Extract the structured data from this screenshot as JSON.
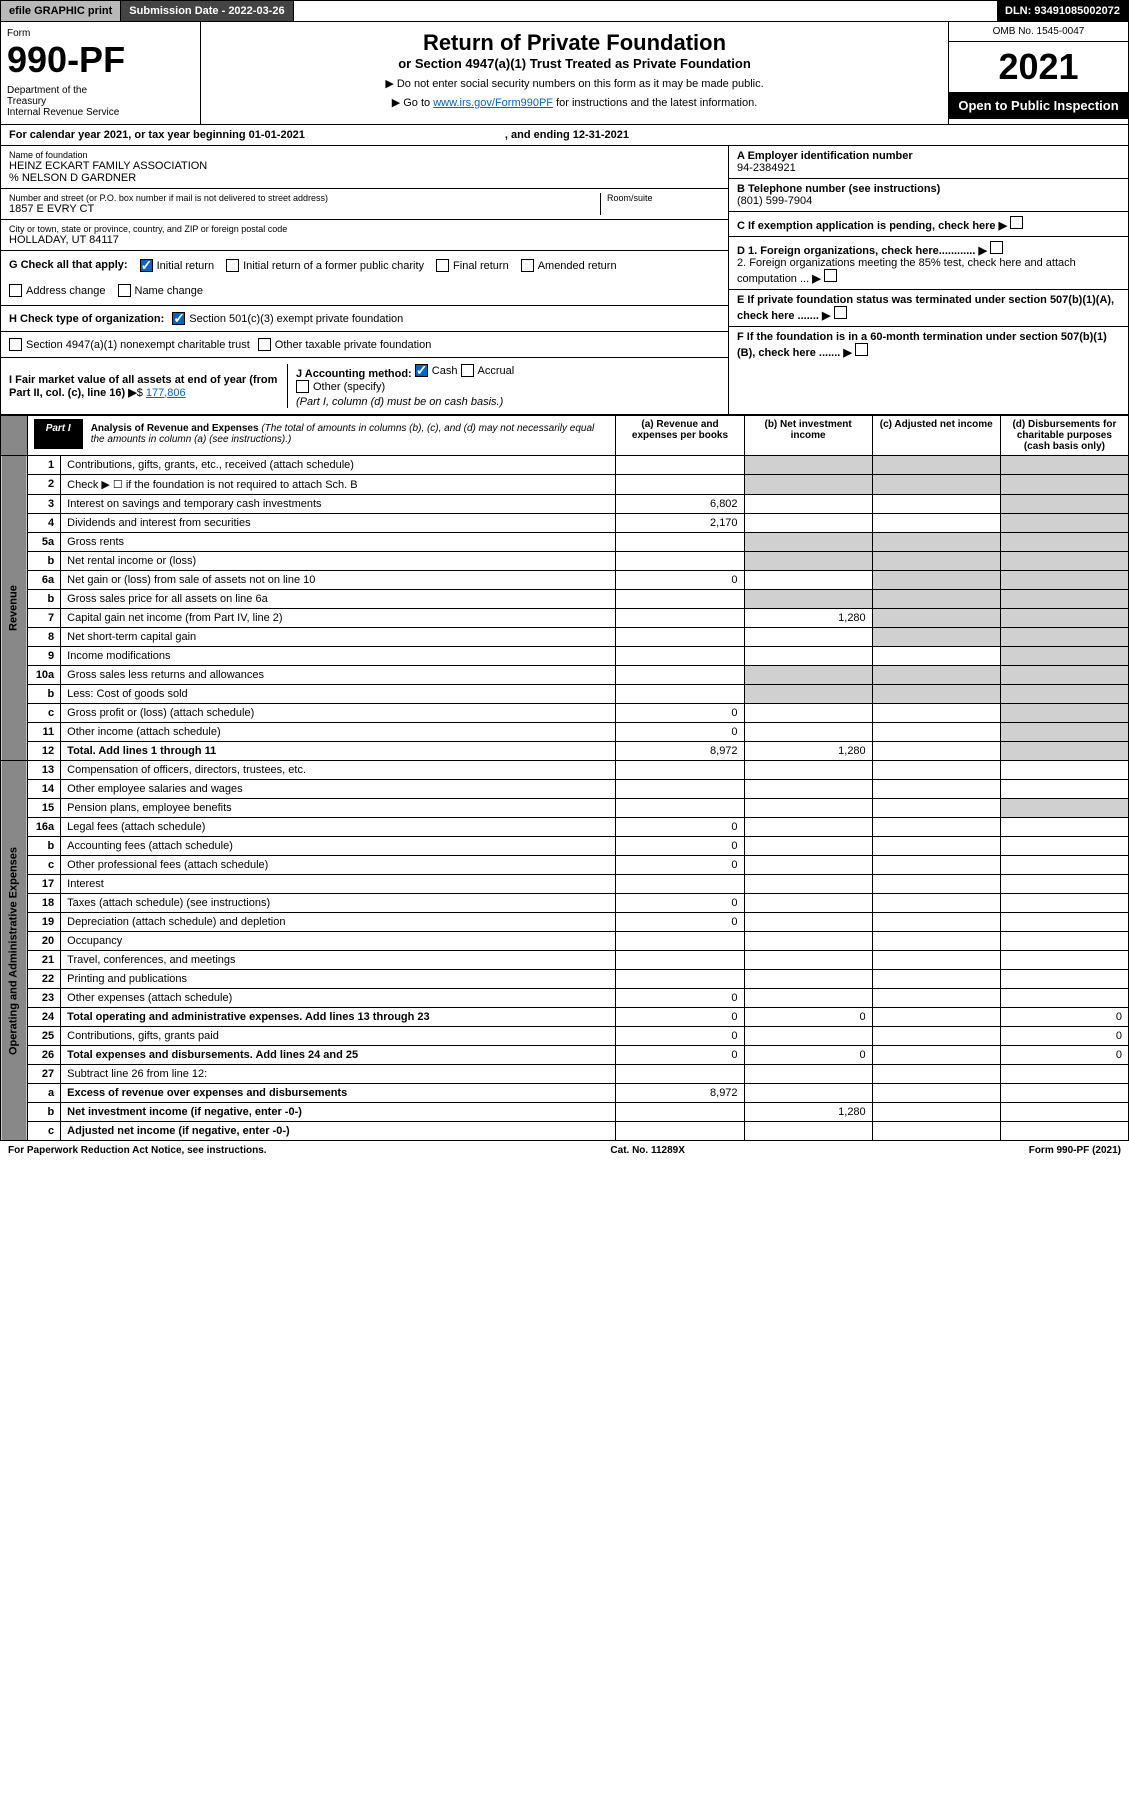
{
  "topbar": {
    "efile": "efile GRAPHIC print",
    "subdate_label": "Submission Date - 2022-03-26",
    "dln": "DLN: 93491085002072"
  },
  "header": {
    "form_label": "Form",
    "form_num": "990-PF",
    "dept": "Department of the Treasury\nInternal Revenue Service",
    "title": "Return of Private Foundation",
    "subtitle": "or Section 4947(a)(1) Trust Treated as Private Foundation",
    "instr1": "▶ Do not enter social security numbers on this form as it may be made public.",
    "instr2_pre": "▶ Go to ",
    "instr2_link": "www.irs.gov/Form990PF",
    "instr2_post": " for instructions and the latest information.",
    "omb": "OMB No. 1545-0047",
    "year": "2021",
    "open": "Open to Public Inspection"
  },
  "calyear": {
    "text": "For calendar year 2021, or tax year beginning 01-01-2021",
    "ending": ", and ending 12-31-2021"
  },
  "info": {
    "name_label": "Name of foundation",
    "name": "HEINZ ECKART FAMILY ASSOCIATION",
    "care_of": "% NELSON D GARDNER",
    "addr_label": "Number and street (or P.O. box number if mail is not delivered to street address)",
    "addr": "1857 E EVRY CT",
    "room_label": "Room/suite",
    "city_label": "City or town, state or province, country, and ZIP or foreign postal code",
    "city": "HOLLADAY, UT  84117",
    "ein_label": "A Employer identification number",
    "ein": "94-2384921",
    "phone_label": "B Telephone number (see instructions)",
    "phone": "(801) 599-7904",
    "c_label": "C If exemption application is pending, check here",
    "d1": "D 1. Foreign organizations, check here............",
    "d2": "2. Foreign organizations meeting the 85% test, check here and attach computation ...",
    "e_label": "E If private foundation status was terminated under section 507(b)(1)(A), check here .......",
    "f_label": "F If the foundation is in a 60-month termination under section 507(b)(1)(B), check here .......",
    "g_label": "G Check all that apply:",
    "g_initial": "Initial return",
    "g_initial_former": "Initial return of a former public charity",
    "g_final": "Final return",
    "g_amended": "Amended return",
    "g_addr": "Address change",
    "g_name": "Name change",
    "h_label": "H Check type of organization:",
    "h_501c3": "Section 501(c)(3) exempt private foundation",
    "h_4947": "Section 4947(a)(1) nonexempt charitable trust",
    "h_other": "Other taxable private foundation",
    "i_label": "I Fair market value of all assets at end of year (from Part II, col. (c), line 16)",
    "i_val": "177,806",
    "j_label": "J Accounting method:",
    "j_cash": "Cash",
    "j_accrual": "Accrual",
    "j_other": "Other (specify)",
    "j_note": "(Part I, column (d) must be on cash basis.)"
  },
  "part1": {
    "tag": "Part I",
    "title": "Analysis of Revenue and Expenses",
    "note": "(The total of amounts in columns (b), (c), and (d) may not necessarily equal the amounts in column (a) (see instructions).)",
    "col_a": "(a) Revenue and expenses per books",
    "col_b": "(b) Net investment income",
    "col_c": "(c) Adjusted net income",
    "col_d": "(d) Disbursements for charitable purposes (cash basis only)",
    "side_rev": "Revenue",
    "side_exp": "Operating and Administrative Expenses"
  },
  "rows": [
    {
      "n": "1",
      "d": "Contributions, gifts, grants, etc., received (attach schedule)"
    },
    {
      "n": "2",
      "d": "Check ▶ ☐ if the foundation is not required to attach Sch. B"
    },
    {
      "n": "3",
      "d": "Interest on savings and temporary cash investments",
      "a": "6,802"
    },
    {
      "n": "4",
      "d": "Dividends and interest from securities",
      "a": "2,170"
    },
    {
      "n": "5a",
      "d": "Gross rents"
    },
    {
      "n": "b",
      "d": "Net rental income or (loss)"
    },
    {
      "n": "6a",
      "d": "Net gain or (loss) from sale of assets not on line 10",
      "a": "0"
    },
    {
      "n": "b",
      "d": "Gross sales price for all assets on line 6a"
    },
    {
      "n": "7",
      "d": "Capital gain net income (from Part IV, line 2)",
      "b": "1,280"
    },
    {
      "n": "8",
      "d": "Net short-term capital gain"
    },
    {
      "n": "9",
      "d": "Income modifications"
    },
    {
      "n": "10a",
      "d": "Gross sales less returns and allowances"
    },
    {
      "n": "b",
      "d": "Less: Cost of goods sold"
    },
    {
      "n": "c",
      "d": "Gross profit or (loss) (attach schedule)",
      "a": "0"
    },
    {
      "n": "11",
      "d": "Other income (attach schedule)",
      "a": "0"
    },
    {
      "n": "12",
      "d": "Total. Add lines 1 through 11",
      "a": "8,972",
      "b": "1,280",
      "bold": true
    },
    {
      "n": "13",
      "d": "Compensation of officers, directors, trustees, etc."
    },
    {
      "n": "14",
      "d": "Other employee salaries and wages"
    },
    {
      "n": "15",
      "d": "Pension plans, employee benefits"
    },
    {
      "n": "16a",
      "d": "Legal fees (attach schedule)",
      "a": "0"
    },
    {
      "n": "b",
      "d": "Accounting fees (attach schedule)",
      "a": "0"
    },
    {
      "n": "c",
      "d": "Other professional fees (attach schedule)",
      "a": "0"
    },
    {
      "n": "17",
      "d": "Interest"
    },
    {
      "n": "18",
      "d": "Taxes (attach schedule) (see instructions)",
      "a": "0"
    },
    {
      "n": "19",
      "d": "Depreciation (attach schedule) and depletion",
      "a": "0"
    },
    {
      "n": "20",
      "d": "Occupancy"
    },
    {
      "n": "21",
      "d": "Travel, conferences, and meetings"
    },
    {
      "n": "22",
      "d": "Printing and publications"
    },
    {
      "n": "23",
      "d": "Other expenses (attach schedule)",
      "a": "0"
    },
    {
      "n": "24",
      "d": "Total operating and administrative expenses. Add lines 13 through 23",
      "a": "0",
      "b": "0",
      "dd": "0",
      "bold": true
    },
    {
      "n": "25",
      "d": "Contributions, gifts, grants paid",
      "a": "0",
      "dd": "0"
    },
    {
      "n": "26",
      "d": "Total expenses and disbursements. Add lines 24 and 25",
      "a": "0",
      "b": "0",
      "dd": "0",
      "bold": true
    },
    {
      "n": "27",
      "d": "Subtract line 26 from line 12:"
    },
    {
      "n": "a",
      "d": "Excess of revenue over expenses and disbursements",
      "a": "8,972",
      "bold": true
    },
    {
      "n": "b",
      "d": "Net investment income (if negative, enter -0-)",
      "b": "1,280",
      "bold": true
    },
    {
      "n": "c",
      "d": "Adjusted net income (if negative, enter -0-)",
      "bold": true
    }
  ],
  "footer": {
    "left": "For Paperwork Reduction Act Notice, see instructions.",
    "center": "Cat. No. 11289X",
    "right": "Form 990-PF (2021)"
  },
  "colors": {
    "gray_bg": "#d0d0d0",
    "side_bg": "#888888",
    "link": "#0066cc"
  }
}
